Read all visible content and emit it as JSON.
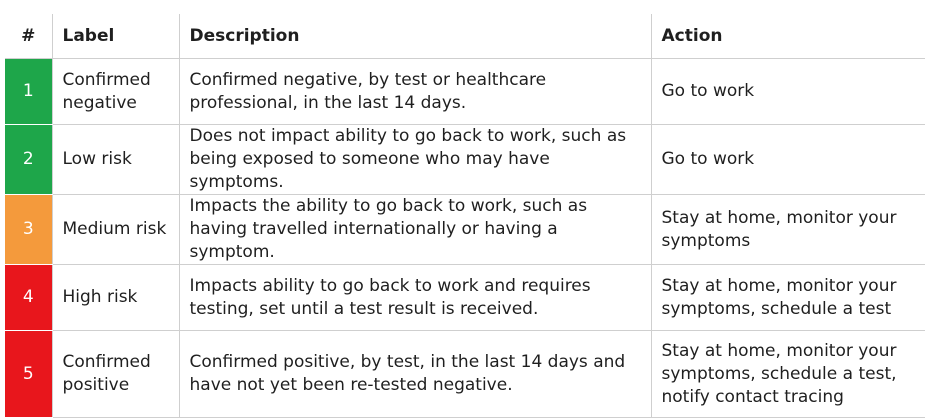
{
  "headers": [
    "#",
    "Label",
    "Description",
    "Action"
  ],
  "rows": [
    {
      "num": "1",
      "label": "Confirmed negative",
      "description": "Confirmed negative, by test or healthcare professional, in the last 14 days.",
      "action": "Go to work",
      "color": "#1ea64a"
    },
    {
      "num": "2",
      "label": "Low risk",
      "description": "Does not impact ability to go back to work, such as being exposed to someone who may have symptoms.",
      "action": "Go to work",
      "color": "#1ea64a"
    },
    {
      "num": "3",
      "label": "Medium risk",
      "description": "Impacts the ability to go back to work, such as having travelled internationally or having a symptom.",
      "action": "Stay at home, monitor your symptoms",
      "color": "#f49a3c"
    },
    {
      "num": "4",
      "label": "High risk",
      "description": "Impacts ability to go back to work and requires testing, set until a test result is received.",
      "action": "Stay at home, monitor your symptoms, schedule a test",
      "color": "#e8161c"
    },
    {
      "num": "5",
      "label": "Confirmed positive",
      "description": "Confirmed positive, by test, in the last 14 days and have not yet been re-tested negative.",
      "action": "Stay at home, monitor your symptoms, schedule a test, notify contact tracing",
      "color": "#e8161c"
    }
  ]
}
